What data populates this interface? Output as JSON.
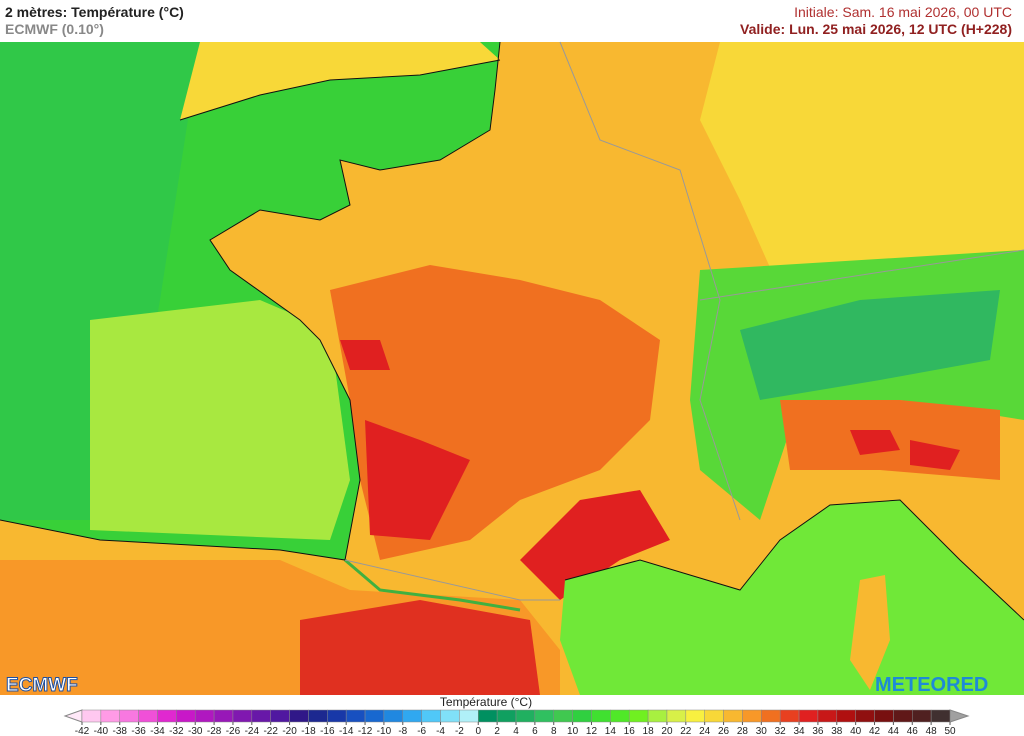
{
  "header": {
    "title": "2 mètres: Température (°C)",
    "model": "ECMWF (0.10°)",
    "initial": "Initiale: Sam. 16 mai 2026, 00 UTC",
    "valid": "Valide: Lun. 25 mai 2026, 12 UTC (H+228)"
  },
  "logos": {
    "left": "ECMWF",
    "right": "METEORED"
  },
  "legend": {
    "title": "Température (°C)",
    "ticks": [
      -42,
      -40,
      -38,
      -36,
      -34,
      -32,
      -30,
      -28,
      -26,
      -24,
      -22,
      -20,
      -18,
      -16,
      -14,
      -12,
      -10,
      -8,
      -6,
      -4,
      -2,
      0,
      2,
      4,
      6,
      8,
      10,
      12,
      14,
      16,
      18,
      20,
      22,
      24,
      26,
      28,
      30,
      32,
      34,
      36,
      38,
      40,
      42,
      44,
      46,
      48,
      50
    ],
    "colors": [
      "#ffc8f0",
      "#ff9be6",
      "#f878e0",
      "#f050d8",
      "#e028d0",
      "#c818c8",
      "#b018c0",
      "#9818b8",
      "#8018b0",
      "#6818a8",
      "#5018a0",
      "#301888",
      "#1c2890",
      "#1838a8",
      "#1850c0",
      "#1868d0",
      "#2088e0",
      "#30a8f0",
      "#50c8f8",
      "#80e0f8",
      "#b0f0f8",
      "#009060",
      "#10a060",
      "#20b060",
      "#30c060",
      "#40c850",
      "#30d040",
      "#40e030",
      "#50e828",
      "#70f020",
      "#a8f040",
      "#d8f048",
      "#f8f040",
      "#f8d838",
      "#f8b830",
      "#f89828",
      "#f07020",
      "#e84020",
      "#e02020",
      "#c81818",
      "#b01010",
      "#901010",
      "#781010",
      "#601818",
      "#502020",
      "#403030"
    ]
  }
}
